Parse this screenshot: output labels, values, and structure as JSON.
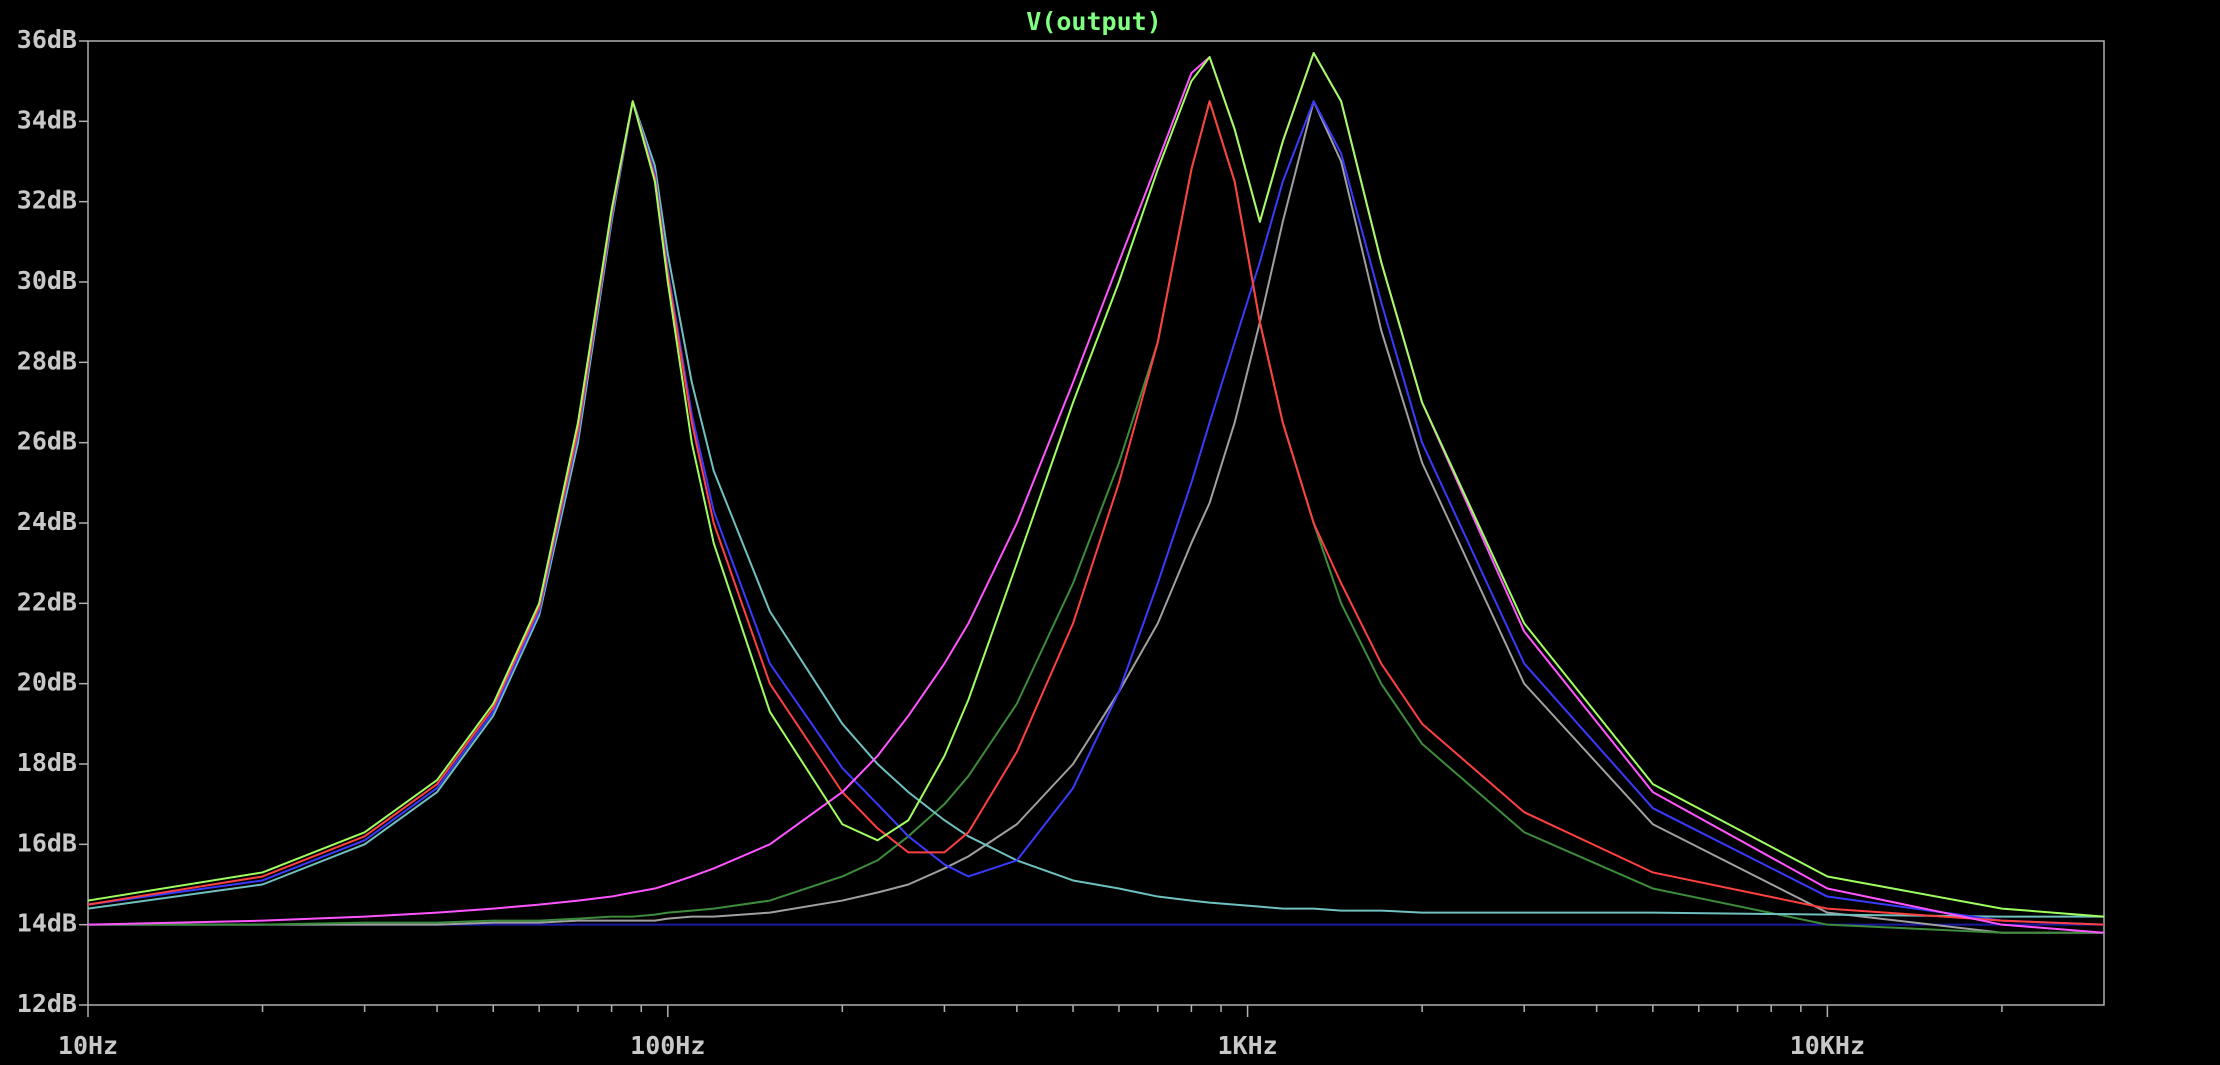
{
  "chart_data": {
    "type": "line",
    "title": "V(output)",
    "title_color": "#80ff80",
    "xscale": "log",
    "x": [
      10,
      20,
      30,
      40,
      50,
      60,
      70,
      80,
      87,
      95,
      100,
      110,
      120,
      150,
      200,
      230,
      260,
      300,
      330,
      400,
      500,
      600,
      700,
      800,
      860,
      950,
      1050,
      1150,
      1300,
      1450,
      1700,
      2000,
      3000,
      5000,
      10000,
      20000,
      30000
    ],
    "xlim": [
      10,
      30000
    ],
    "xticks": [
      {
        "value": 10,
        "label": "10Hz"
      },
      {
        "value": 100,
        "label": "100Hz"
      },
      {
        "value": 1000,
        "label": "1KHz"
      },
      {
        "value": 10000,
        "label": "10KHz"
      }
    ],
    "xminorticks": [
      20,
      30,
      40,
      50,
      60,
      70,
      80,
      90,
      200,
      300,
      400,
      500,
      600,
      700,
      800,
      900,
      2000,
      3000,
      4000,
      5000,
      6000,
      7000,
      8000,
      9000,
      20000
    ],
    "ylim": [
      12,
      36
    ],
    "yticks": [
      {
        "value": 12,
        "label": "12dB"
      },
      {
        "value": 14,
        "label": "14dB"
      },
      {
        "value": 16,
        "label": "16dB"
      },
      {
        "value": 18,
        "label": "18dB"
      },
      {
        "value": 20,
        "label": "20dB"
      },
      {
        "value": 22,
        "label": "22dB"
      },
      {
        "value": 24,
        "label": "24dB"
      },
      {
        "value": 26,
        "label": "26dB"
      },
      {
        "value": 28,
        "label": "28dB"
      },
      {
        "value": 30,
        "label": "30dB"
      },
      {
        "value": 32,
        "label": "32dB"
      },
      {
        "value": 34,
        "label": "34dB"
      },
      {
        "value": 36,
        "label": "36dB"
      }
    ],
    "grid": false,
    "series": [
      {
        "color": "#1a1aa0",
        "values": [
          14,
          14,
          14,
          14,
          14,
          14,
          14,
          14,
          14,
          14,
          14,
          14,
          14,
          14,
          14,
          14,
          14,
          14,
          14,
          14,
          14,
          14,
          14,
          14,
          14,
          14,
          14,
          14,
          14,
          14,
          14,
          14,
          14,
          14,
          14,
          14,
          14
        ]
      },
      {
        "color": "#a0a0a0",
        "values": [
          14.0,
          14.0,
          14.0,
          14.0,
          14.05,
          14.05,
          14.1,
          14.1,
          14.1,
          14.1,
          14.15,
          14.2,
          14.2,
          14.3,
          14.6,
          14.8,
          15.0,
          15.4,
          15.7,
          16.5,
          18.0,
          19.8,
          21.5,
          23.5,
          24.5,
          26.5,
          29.0,
          31.5,
          34.5,
          33.0,
          28.8,
          25.5,
          20.0,
          16.5,
          14.3,
          13.8,
          13.8
        ]
      },
      {
        "color": "#3c8c3c",
        "values": [
          14.0,
          14.0,
          14.05,
          14.05,
          14.1,
          14.1,
          14.15,
          14.2,
          14.2,
          14.25,
          14.3,
          14.35,
          14.4,
          14.6,
          15.2,
          15.6,
          16.2,
          17.0,
          17.7,
          19.5,
          22.5,
          25.5,
          28.5,
          32.8,
          34.5,
          32.5,
          29.0,
          26.5,
          24.0,
          22.0,
          20.0,
          18.5,
          16.3,
          14.9,
          14.0,
          13.8,
          13.8
        ]
      },
      {
        "color": "#70c0c0",
        "values": [
          14.4,
          15.0,
          16.0,
          17.3,
          19.2,
          21.7,
          26.0,
          31.5,
          34.5,
          32.9,
          30.7,
          27.5,
          25.3,
          21.8,
          19.0,
          18.0,
          17.3,
          16.6,
          16.2,
          15.6,
          15.1,
          14.9,
          14.7,
          14.6,
          14.55,
          14.5,
          14.45,
          14.4,
          14.4,
          14.35,
          14.35,
          14.3,
          14.3,
          14.3,
          14.25,
          14.2,
          14.2
        ]
      },
      {
        "color": "#3a3aff",
        "values": [
          14.5,
          15.1,
          16.1,
          17.4,
          19.3,
          21.8,
          26.2,
          31.6,
          34.5,
          32.7,
          30.3,
          26.7,
          24.3,
          20.5,
          17.9,
          17.0,
          16.2,
          15.5,
          15.2,
          15.6,
          17.4,
          19.8,
          22.5,
          25.0,
          26.5,
          28.5,
          30.5,
          32.5,
          34.5,
          33.2,
          29.5,
          26.0,
          20.5,
          16.9,
          14.7,
          14.1,
          14.0
        ]
      },
      {
        "color": "#ff4040",
        "values": [
          14.5,
          15.2,
          16.2,
          17.5,
          19.4,
          21.9,
          26.3,
          31.7,
          34.5,
          32.6,
          30.2,
          26.5,
          24.0,
          20.0,
          17.3,
          16.4,
          15.8,
          15.8,
          16.3,
          18.3,
          21.5,
          25.0,
          28.5,
          32.8,
          34.5,
          32.5,
          29.0,
          26.5,
          24.0,
          22.5,
          20.5,
          19.0,
          16.8,
          15.3,
          14.4,
          14.1,
          14.0
        ]
      },
      {
        "color": "#ff55ff",
        "values": [
          14.0,
          14.1,
          14.2,
          14.3,
          14.4,
          14.5,
          14.6,
          14.7,
          14.8,
          14.9,
          15.0,
          15.2,
          15.4,
          16.0,
          17.3,
          18.2,
          19.2,
          20.5,
          21.5,
          24.0,
          27.5,
          30.5,
          33.0,
          35.2,
          35.6,
          33.8,
          31.5,
          33.5,
          35.7,
          34.5,
          30.5,
          27.0,
          21.3,
          17.3,
          14.9,
          14.0,
          13.8
        ]
      },
      {
        "color": "#a0ff60",
        "values": [
          14.6,
          15.3,
          16.3,
          17.6,
          19.5,
          22.0,
          26.5,
          31.8,
          34.5,
          32.5,
          30.0,
          26.0,
          23.5,
          19.3,
          16.5,
          16.1,
          16.6,
          18.2,
          19.6,
          23.0,
          27.0,
          30.0,
          32.8,
          35.0,
          35.6,
          33.8,
          31.5,
          33.5,
          35.7,
          34.5,
          30.5,
          27.0,
          21.5,
          17.5,
          15.2,
          14.4,
          14.2
        ]
      }
    ]
  }
}
